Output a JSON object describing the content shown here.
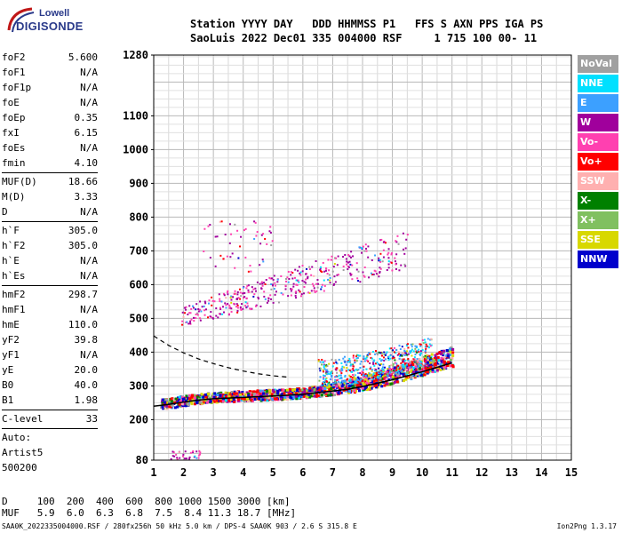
{
  "logo": {
    "line1": "Lowell",
    "line2": "DIGISONDE"
  },
  "header": {
    "row1": "Station YYYY DAY   DDD HHMMSS P1   FFS S AXN PPS IGA PS",
    "row2": "SaoLuis 2022 Dec01 335 004000 RSF     1 715 100 00- 11"
  },
  "params": {
    "group1": [
      {
        "k": "foF2",
        "v": "5.600"
      },
      {
        "k": "foF1",
        "v": "N/A"
      },
      {
        "k": "foF1p",
        "v": "N/A"
      },
      {
        "k": "foE",
        "v": "N/A"
      },
      {
        "k": "foEp",
        "v": "0.35"
      },
      {
        "k": "fxI",
        "v": "6.15"
      },
      {
        "k": "foEs",
        "v": "N/A"
      },
      {
        "k": "fmin",
        "v": "4.10"
      }
    ],
    "group2": [
      {
        "k": "MUF(D)",
        "v": "18.66"
      },
      {
        "k": "M(D)",
        "v": "3.33"
      },
      {
        "k": "D",
        "v": "N/A"
      }
    ],
    "group3": [
      {
        "k": "h`F",
        "v": "305.0"
      },
      {
        "k": "h`F2",
        "v": "305.0"
      },
      {
        "k": "h`E",
        "v": "N/A"
      },
      {
        "k": "h`Es",
        "v": "N/A"
      }
    ],
    "group4": [
      {
        "k": "hmF2",
        "v": "298.7"
      },
      {
        "k": "hmF1",
        "v": "N/A"
      },
      {
        "k": "hmE",
        "v": "110.0"
      },
      {
        "k": "yF2",
        "v": "39.8"
      },
      {
        "k": "yF1",
        "v": "N/A"
      },
      {
        "k": "yE",
        "v": "20.0"
      },
      {
        "k": "B0",
        "v": "40.0"
      },
      {
        "k": "B1",
        "v": "1.98"
      }
    ],
    "group5": [
      {
        "k": "C-level",
        "v": "33"
      }
    ],
    "auto": [
      "Auto:",
      "Artist5",
      "500200"
    ]
  },
  "legend": [
    {
      "label": "NoVal",
      "color": "#a0a0a0"
    },
    {
      "label": "NNE",
      "color": "#00e0ff"
    },
    {
      "label": "E",
      "color": "#3ca0ff"
    },
    {
      "label": "W",
      "color": "#a0009c"
    },
    {
      "label": "Vo-",
      "color": "#ff40b0"
    },
    {
      "label": "Vo+",
      "color": "#ff0000"
    },
    {
      "label": "SSW",
      "color": "#ffb0b0"
    },
    {
      "label": "X-",
      "color": "#008000"
    },
    {
      "label": "X+",
      "color": "#80c060"
    },
    {
      "label": "SSE",
      "color": "#d8d800"
    },
    {
      "label": "NNW",
      "color": "#0000cc"
    }
  ],
  "distance_table": {
    "row1": "D     100  200  400  600  800 1000 1500 3000 [km]",
    "row2": "MUF   5.9  6.0  6.3  6.8  7.5  8.4 11.3 18.7 [MHz]"
  },
  "footer": {
    "left": "SAA0K_2022335004000.RSF / 280fx256h 50 kHz 5.0 km / DPS-4 SAA0K 903 / 2.6 S 315.8 E",
    "right": "Ion2Png 1.3.17"
  },
  "chart_data": {
    "type": "scatter",
    "x_ticks": [
      1,
      2,
      3,
      4,
      5,
      6,
      7,
      8,
      9,
      10,
      11,
      12,
      13,
      14,
      15
    ],
    "y_ticks": [
      80,
      200,
      300,
      400,
      500,
      600,
      700,
      800,
      900,
      1000,
      1100,
      1280
    ],
    "xlim": [
      1,
      15
    ],
    "ylim": [
      80,
      1280
    ],
    "grid": true,
    "profile_curve": {
      "x": [
        1.0,
        1.5,
        2.0,
        2.5,
        3.0,
        3.5,
        4.0,
        4.5,
        5.0,
        5.5,
        6.0,
        6.5,
        7.0,
        7.5,
        8.0,
        8.5,
        9.0,
        9.5,
        10.0,
        10.5,
        11.0
      ],
      "y": [
        240,
        245,
        252,
        258,
        262,
        264,
        266,
        268,
        270,
        272,
        275,
        280,
        285,
        290,
        298,
        308,
        318,
        330,
        342,
        355,
        368
      ]
    },
    "dashed_curve": {
      "x": [
        1.0,
        1.5,
        2.0,
        2.5,
        3.0,
        3.5,
        4.0,
        4.5,
        5.0,
        5.5
      ],
      "y": [
        448,
        420,
        398,
        380,
        366,
        354,
        344,
        336,
        330,
        326
      ]
    },
    "clusters": [
      {
        "name": "F-trace",
        "x": [
          1.2,
          11.0
        ],
        "y": [
          245,
          340
        ],
        "n": 1500
      },
      {
        "name": "F-upper",
        "x": [
          6.5,
          10.3
        ],
        "y": [
          300,
          420
        ],
        "n": 500
      },
      {
        "name": "2F-echo",
        "x": [
          1.9,
          9.5
        ],
        "y": [
          470,
          680
        ],
        "n": 420
      },
      {
        "name": "high-echo",
        "x": [
          2.5,
          5.0
        ],
        "y": [
          640,
          790
        ],
        "n": 50
      },
      {
        "name": "low-echo",
        "x": [
          1.5,
          2.6
        ],
        "y": [
          85,
          110
        ],
        "n": 30
      }
    ]
  }
}
